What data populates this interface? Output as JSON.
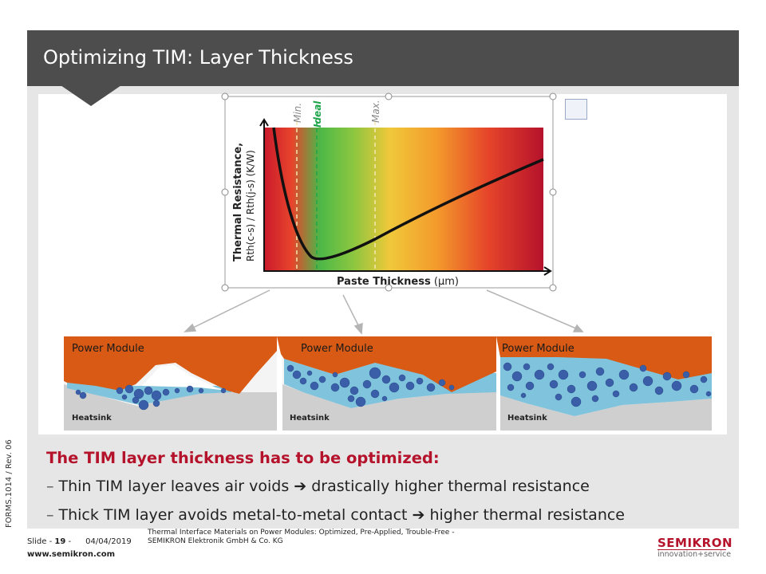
{
  "slide": {
    "title": "Optimizing TIM: Layer Thickness",
    "side_label": "FORMS.1014 / Rev. 06"
  },
  "chart_data": {
    "type": "line",
    "ylabel_line1": "Thermal Resistance,",
    "ylabel_line2": "Rth(c-s) / Rth(j-s) (K/W)",
    "xlabel": "Paste Thickness",
    "xlabel_unit": " (µm)",
    "markers": [
      "Min.",
      "Ideal",
      "Max."
    ],
    "marker_colors": [
      "#888888",
      "#1fa64a",
      "#888888"
    ],
    "gradient_colors": [
      "#c91a2c",
      "#4cb848",
      "#f0c83a",
      "#c91a2c"
    ]
  },
  "diagrams": [
    {
      "module_label": "Power Module",
      "heatsink_label": "Heatsink"
    },
    {
      "module_label": "Power Module",
      "heatsink_label": "Heatsink"
    },
    {
      "module_label": "Power Module",
      "heatsink_label": "Heatsink"
    }
  ],
  "text": {
    "headline": "The TIM layer thickness has to be optimized:",
    "bullet1_a": "Thin TIM layer leaves air voids ",
    "bullet1_b": " drastically higher thermal resistance",
    "bullet2_a": "Thick TIM layer avoids metal-to-metal contact ",
    "bullet2_b": " higher thermal resistance",
    "dash": "–",
    "arrow": "➔"
  },
  "footer": {
    "slide_prefix": "Slide - ",
    "slide_number": "19",
    "slide_suffix": " -",
    "date": "04/04/2019",
    "desc_line1": "Thermal Interface Materials on Power Modules: Optimized, Pre-Applied, Trouble-Free -",
    "desc_line2": "SEMIKRON Elektronik GmbH & Co. KG",
    "url": "www.semikron.com"
  },
  "logo": {
    "word": "SEMIKRON",
    "tagline": "innovation+service",
    "color": "#b5122b"
  },
  "colors": {
    "header_bg": "#4d4d4d",
    "module_orange": "#d85a14",
    "tim_blue": "#7fc3dc",
    "particle_blue": "#3a5ea8",
    "heatsink_gray": "#cfcfcf"
  }
}
